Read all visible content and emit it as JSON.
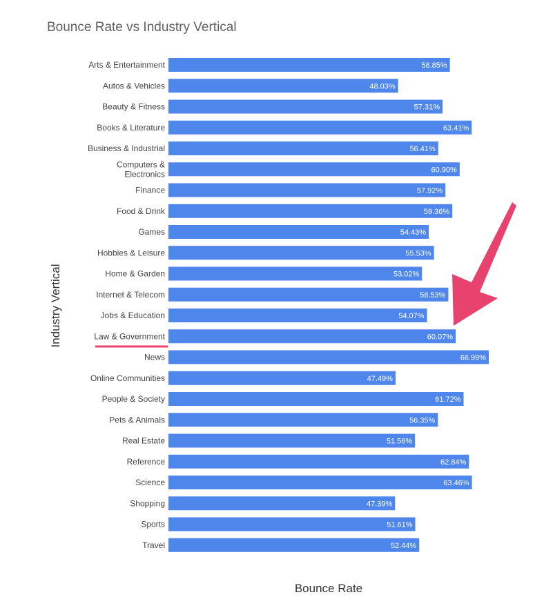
{
  "chart_data": {
    "type": "bar",
    "orientation": "horizontal",
    "title": "Bounce Rate vs Industry Vertical",
    "xlabel": "Bounce Rate",
    "ylabel": "Industry Vertical",
    "xlim": [
      0,
      70
    ],
    "grid": false,
    "legend": "none",
    "value_suffix": "%",
    "categories": [
      "Arts & Entertainment",
      "Autos & Vehicles",
      "Beauty & Fitness",
      "Books & Literature",
      "Business & Industrial",
      "Computers & Electronics",
      "Finance",
      "Food & Drink",
      "Games",
      "Hobbies & Leisure",
      "Home & Garden",
      "Internet & Telecom",
      "Jobs & Education",
      "Law & Government",
      "News",
      "Online Communities",
      "People & Society",
      "Pets & Animals",
      "Real Estate",
      "Reference",
      "Science",
      "Shopping",
      "Sports",
      "Travel"
    ],
    "values": [
      58.85,
      48.03,
      57.31,
      63.41,
      56.41,
      60.9,
      57.92,
      59.36,
      54.43,
      55.53,
      53.02,
      58.53,
      54.07,
      60.07,
      66.99,
      47.49,
      61.72,
      56.35,
      51.56,
      62.84,
      63.46,
      47.39,
      51.61,
      52.44
    ],
    "value_labels": [
      "58.85%",
      "48.03%",
      "57.31%",
      "63.41%",
      "56.41%",
      "60.90%",
      "57.92%",
      "59.36%",
      "54.43%",
      "55.53%",
      "53.02%",
      "58.53%",
      "54.07%",
      "60.07%",
      "66.99%",
      "47.49%",
      "61.72%",
      "56.35%",
      "51.56%",
      "62.84%",
      "63.46%",
      "47.39%",
      "51.61%",
      "52.44%"
    ],
    "highlight": {
      "category": "Law & Government",
      "marker": "underline and arrow"
    }
  },
  "colors": {
    "bar": "#4f86ec",
    "annotation": "#e8436e",
    "title": "#616161",
    "labels": "#444444"
  }
}
